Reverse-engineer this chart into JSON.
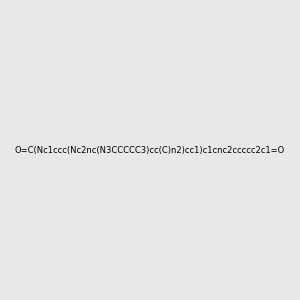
{
  "smiles": "O=C(Nc1ccc(Nc2nc(N3CCCCC3)cc(C)n2)cc1)c1cnc2ccccc2c1=O",
  "title": "",
  "bg_color": "#e8e8e8",
  "bond_color": "#000000",
  "n_color": "#0000ff",
  "o_color": "#ff0000",
  "nh_color": "#408080",
  "figsize": [
    3.0,
    3.0
  ],
  "dpi": 100
}
